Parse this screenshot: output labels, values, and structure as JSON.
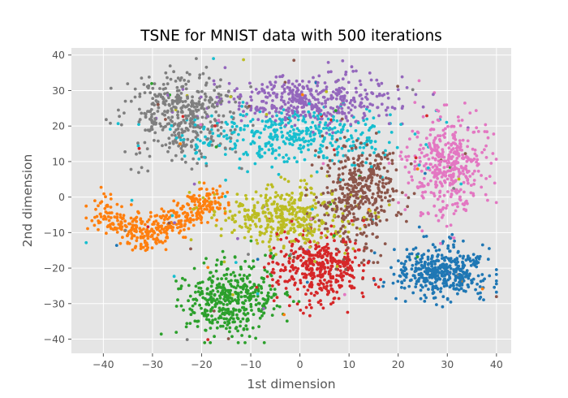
{
  "chart_data": {
    "type": "scatter",
    "title": "TSNE for MNIST data with 500 iterations",
    "xlabel": "1st dimension",
    "ylabel": "2nd dimension",
    "xlim": [
      -46.5,
      43
    ],
    "ylim": [
      -44,
      42
    ],
    "xticks": [
      -40,
      -30,
      -20,
      -10,
      0,
      10,
      20,
      30,
      40
    ],
    "yticks": [
      -40,
      -30,
      -20,
      -10,
      0,
      10,
      20,
      30,
      40
    ],
    "grid": true,
    "style": "ggplot",
    "background": "#e5e5e5",
    "point_count_per_series": 420,
    "series": [
      {
        "color": "#1f77b4",
        "center": [
          29,
          -21
        ],
        "spread": [
          4.8,
          3.6
        ]
      },
      {
        "color": "#ff7f0e",
        "center": [
          -30,
          -7
        ],
        "spread": [
          7.5,
          3.4
        ],
        "arc": [
          [
            -41,
            -4
          ],
          [
            -36,
            -8
          ],
          [
            -31,
            -11
          ],
          [
            -26,
            -7
          ],
          [
            -21,
            -3
          ],
          [
            -16,
            0
          ]
        ]
      },
      {
        "color": "#2ca02c",
        "center": [
          -14,
          -29
        ],
        "spread": [
          4.8,
          5.2
        ]
      },
      {
        "color": "#d62728",
        "center": [
          4,
          -20
        ],
        "spread": [
          5.0,
          4.8
        ]
      },
      {
        "color": "#9467bd",
        "center": [
          2,
          27
        ],
        "spread": [
          9.0,
          3.6
        ]
      },
      {
        "color": "#8c564b",
        "center": [
          12,
          1
        ],
        "spread": [
          3.8,
          7.0
        ]
      },
      {
        "color": "#e377c2",
        "center": [
          30,
          9
        ],
        "spread": [
          3.8,
          7.0
        ]
      },
      {
        "color": "#7f7f7f",
        "center": [
          -24,
          23
        ],
        "spread": [
          5.2,
          6.0
        ]
      },
      {
        "color": "#bcbd22",
        "center": [
          -3,
          -5
        ],
        "spread": [
          7.0,
          4.5
        ]
      },
      {
        "color": "#17becf",
        "center": [
          -1,
          17
        ],
        "spread": [
          10.5,
          4.0
        ]
      }
    ]
  }
}
